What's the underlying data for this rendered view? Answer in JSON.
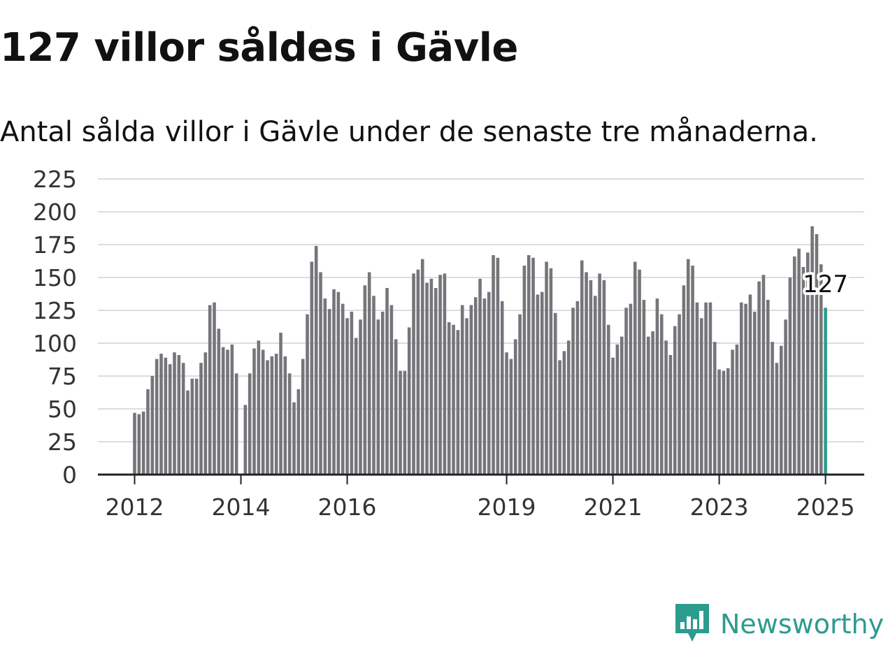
{
  "title": "127 villor såldes i Gävle",
  "subtitle": "Antal sålda villor i Gävle under de senaste tre månaderna.",
  "brand": {
    "name": "Newsworthy",
    "icon": "newsworthy-logo-icon",
    "color": "#2c9c8f"
  },
  "chart_data": {
    "type": "bar",
    "title": "127 villor såldes i Gävle",
    "subtitle": "Antal sålda villor i Gävle under de senaste tre månaderna.",
    "xlabel": "",
    "ylabel": "",
    "ylim": [
      0,
      225
    ],
    "yticks": [
      0,
      25,
      50,
      75,
      100,
      125,
      150,
      175,
      200,
      225
    ],
    "grid": true,
    "x_tick_labels": [
      "2012",
      "2014",
      "2016",
      "2019",
      "2021",
      "2023",
      "2025"
    ],
    "x_start": "2012-01",
    "bar_color": "#76757a",
    "highlight_color": "#2c9c8f",
    "highlight_label": "127",
    "series": [
      {
        "values": [
          47,
          46,
          48,
          65,
          75,
          88,
          92,
          89,
          84,
          93,
          91,
          85,
          64,
          73,
          73,
          85,
          93,
          129,
          131,
          111,
          97,
          95,
          99,
          77,
          0,
          53,
          77,
          96,
          102,
          95,
          87,
          90,
          92,
          108,
          90,
          77,
          55,
          65,
          88,
          122,
          162,
          174,
          154,
          134,
          126,
          141,
          139,
          130,
          119,
          124,
          104,
          118,
          144,
          154,
          136,
          118,
          124,
          142,
          129,
          103,
          79,
          79,
          112,
          153,
          156,
          164,
          146,
          149,
          142,
          152,
          153,
          116,
          114,
          110,
          129,
          119,
          129,
          135,
          149,
          134,
          139,
          167,
          165,
          132,
          93,
          88,
          103,
          122,
          159,
          167,
          165,
          137,
          139,
          162,
          157,
          123,
          87,
          94,
          102,
          127,
          132,
          163,
          154,
          148,
          136,
          153,
          148,
          114,
          89,
          99,
          105,
          127,
          130,
          162,
          156,
          133,
          105,
          109,
          134,
          122,
          102,
          91,
          113,
          122,
          144,
          164,
          159,
          131,
          119,
          131,
          131,
          101,
          80,
          79,
          81,
          95,
          99,
          131,
          130,
          137,
          124,
          147,
          152,
          133,
          101,
          85,
          98,
          118,
          150,
          166,
          172,
          158,
          169,
          189,
          183,
          160,
          127
        ]
      }
    ]
  }
}
